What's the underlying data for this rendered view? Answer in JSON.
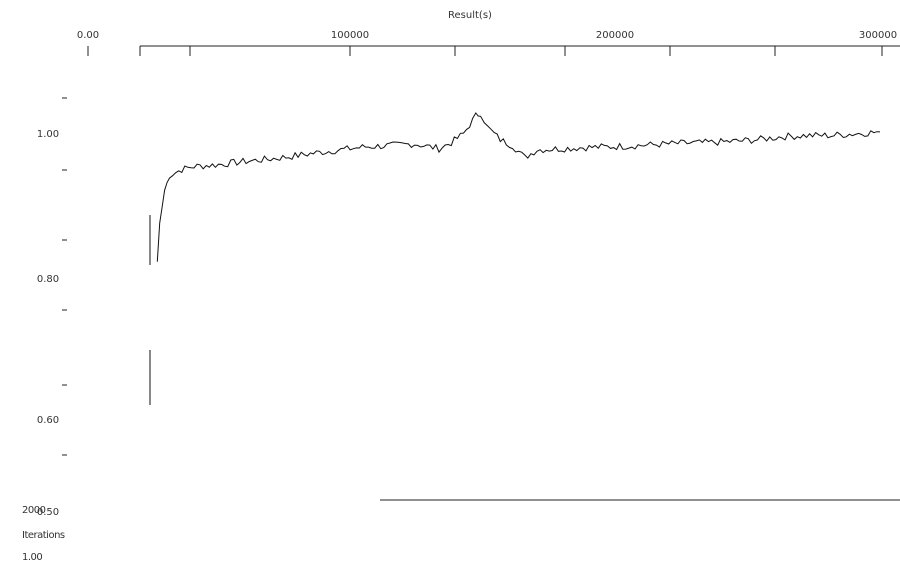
{
  "chart_data": {
    "type": "line",
    "title": "Result(s)",
    "xlabel": "",
    "ylabel": "",
    "x_top_ticks": [
      "0.00",
      "100000",
      "200000",
      "300000"
    ],
    "y_ticks": [
      "1.00",
      "0.80",
      "0.60",
      "0.50"
    ],
    "xlim": [
      0,
      300000
    ],
    "ylim": [
      0.45,
      1.08
    ],
    "grid": false,
    "legend": "none",
    "series": [
      {
        "color": "#111111",
        "x": [
          5000,
          6000,
          8000,
          10000,
          15000,
          20000,
          30000,
          40000,
          50000,
          60000,
          70000,
          80000,
          90000,
          100000,
          110000,
          120000,
          125000,
          130000,
          135000,
          137000,
          140000,
          145000,
          150000,
          155000,
          160000,
          170000,
          180000,
          190000,
          200000,
          210000,
          220000,
          230000,
          240000,
          250000,
          260000,
          270000,
          280000,
          290000,
          300000
        ],
        "y": [
          0.8,
          0.865,
          0.92,
          0.945,
          0.955,
          0.96,
          0.963,
          0.968,
          0.972,
          0.977,
          0.983,
          0.988,
          0.993,
          0.995,
          0.998,
          0.99,
          1.0,
          1.015,
          1.045,
          1.05,
          1.025,
          1.005,
          0.995,
          0.975,
          0.988,
          0.99,
          0.992,
          0.993,
          0.995,
          0.997,
          0.999,
          1.0,
          1.002,
          1.005,
          1.01,
          1.012,
          1.012,
          1.015,
          1.018
        ]
      }
    ],
    "footer": {
      "value": "2000",
      "label": "Iterations",
      "subvalue": "1.00"
    }
  }
}
